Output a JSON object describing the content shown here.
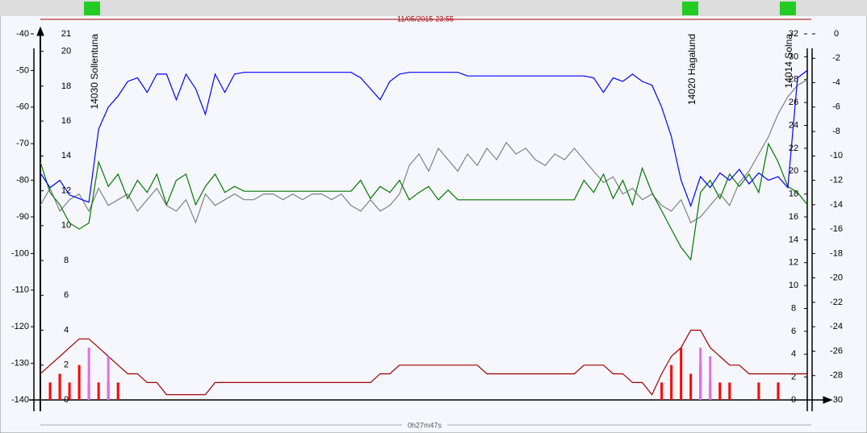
{
  "chart_data": {
    "type": "line",
    "start_time": "11/05/2015-23:55",
    "duration": "0h27m47s",
    "annotations": [
      "14030 Sollentuna",
      "14020 Hagalund",
      "14014 Solna"
    ],
    "ylim": [
      -140,
      -40
    ],
    "yticks": [
      -140,
      -130,
      -120,
      -110,
      -100,
      -90,
      -80,
      -70,
      -60,
      -50,
      -40
    ],
    "y2lim": [
      -30,
      0
    ],
    "y2ticks": [
      -30,
      -28,
      -26,
      -24,
      -22,
      -20,
      -18,
      -16,
      -14,
      -12,
      -10,
      -8,
      -6,
      -4,
      -2,
      0
    ],
    "y3lim": [
      0,
      21
    ],
    "y3ticks": [
      0,
      2,
      4,
      6,
      8,
      10,
      12,
      14,
      16,
      18,
      20,
      21
    ],
    "y4lim": [
      0,
      32
    ],
    "y4ticks": [
      0,
      2,
      4,
      6,
      8,
      10,
      12,
      14,
      16,
      18,
      20,
      22,
      24,
      26,
      28,
      30,
      32
    ],
    "grid": false,
    "series": [
      {
        "type": "step",
        "color": "#a00000",
        "axis": "y3",
        "values": [
          1.5,
          2,
          2.5,
          3,
          3.5,
          3.5,
          3,
          2.5,
          2,
          1.5,
          1.5,
          1,
          1,
          0.3,
          0.3,
          0.3,
          0.3,
          0.3,
          1,
          1,
          1,
          1,
          1,
          1,
          1,
          1,
          1,
          1,
          1,
          1,
          1,
          1,
          1,
          1,
          1,
          1.5,
          1.5,
          2,
          2,
          2,
          2,
          2,
          2,
          2,
          2,
          2,
          1.5,
          1.5,
          1.5,
          1.5,
          1.5,
          1.5,
          1.5,
          1.5,
          1.5,
          1.5,
          2,
          2,
          2,
          1.5,
          1.5,
          1,
          1,
          0.3,
          1.5,
          2.5,
          3,
          4,
          4,
          3,
          2.5,
          2,
          2,
          1.5,
          1.5,
          1.5,
          1.5,
          1.5,
          1.5,
          1.5
        ]
      },
      {
        "type": "bar",
        "color": "#ff0000",
        "axis": "y3",
        "values": [
          null,
          1,
          1.5,
          1,
          2,
          1,
          1,
          1,
          1,
          null,
          null,
          null,
          null,
          null,
          null,
          null,
          null,
          null,
          null,
          null,
          null,
          null,
          null,
          null,
          null,
          null,
          null,
          null,
          null,
          null,
          null,
          null,
          null,
          null,
          null,
          null,
          null,
          null,
          null,
          null,
          null,
          null,
          null,
          null,
          null,
          null,
          null,
          null,
          null,
          null,
          null,
          null,
          null,
          null,
          null,
          null,
          null,
          null,
          null,
          null,
          null,
          null,
          null,
          null,
          1,
          2,
          3,
          1.5,
          2,
          1,
          1,
          1,
          null,
          null,
          1,
          null,
          1,
          null,
          null,
          null
        ]
      },
      {
        "type": "bar",
        "color": "#e070e0",
        "axis": "y3",
        "values": [
          null,
          null,
          null,
          null,
          null,
          3,
          null,
          2.5,
          null,
          null,
          null,
          null,
          null,
          null,
          null,
          null,
          null,
          null,
          null,
          null,
          null,
          null,
          null,
          null,
          null,
          null,
          null,
          null,
          null,
          null,
          null,
          null,
          null,
          null,
          null,
          null,
          null,
          null,
          null,
          null,
          null,
          null,
          null,
          null,
          null,
          null,
          null,
          null,
          null,
          null,
          null,
          null,
          null,
          null,
          null,
          null,
          null,
          null,
          null,
          null,
          null,
          null,
          null,
          null,
          null,
          null,
          null,
          null,
          3,
          2.5,
          null,
          null,
          null,
          null,
          null,
          null,
          null,
          null,
          null,
          null
        ]
      },
      {
        "type": "line",
        "color": "#808080",
        "axis": "y4",
        "values": [
          17,
          18.5,
          16.5,
          17.5,
          18,
          16.5,
          18.5,
          17,
          17.5,
          18,
          16.5,
          17.5,
          18.5,
          17,
          16.5,
          17.5,
          15.5,
          18,
          17,
          17.5,
          18,
          17.5,
          17.5,
          18,
          18,
          17.5,
          18,
          17.5,
          18,
          18,
          17.5,
          18,
          17,
          16.5,
          17.5,
          16.5,
          17,
          18,
          20.5,
          21.5,
          20,
          22,
          21,
          20,
          21.5,
          20.5,
          22,
          21,
          22.5,
          21.5,
          22,
          21,
          20.5,
          21.5,
          21,
          22,
          21,
          20,
          19,
          19.5,
          18,
          18.5,
          17.5,
          18,
          17,
          16.5,
          17.5,
          15.5,
          16,
          17,
          18,
          17,
          19,
          20,
          21.5,
          23,
          25,
          26.5,
          27.5,
          28
        ]
      },
      {
        "type": "line",
        "color": "#007800",
        "axis": "y2",
        "values": [
          -10.5,
          -13,
          -14,
          -15.5,
          -16,
          -15.5,
          -10.5,
          -12.5,
          -11.5,
          -13.5,
          -12,
          -13,
          -11.5,
          -14,
          -12,
          -11.5,
          -14,
          -12.5,
          -11.5,
          -13,
          -12.5,
          -12.9,
          -12.9,
          -12.9,
          -12.9,
          -12.9,
          -12.9,
          -12.9,
          -12.9,
          -12.9,
          -12.9,
          -12.9,
          -12.9,
          -12,
          -13.5,
          -12.5,
          -13,
          -12,
          -13.6,
          -13,
          -12.5,
          -13.6,
          -12.8,
          -13.6,
          -13.6,
          -13.6,
          -13.6,
          -13.6,
          -13.6,
          -13.6,
          -13.6,
          -13.6,
          -13.6,
          -13.6,
          -13.6,
          -13.6,
          -12,
          -13,
          -11.5,
          -13.5,
          -12,
          -14,
          -11,
          -13,
          -14.5,
          -16,
          -17.5,
          -18.5,
          -13,
          -12,
          -13.5,
          -11.5,
          -12.5,
          -11.5,
          -13,
          -9,
          -10.5,
          -12.5,
          -13,
          -14
        ]
      },
      {
        "type": "line",
        "color": "#0000ff",
        "axis": "y",
        "values": [
          -78,
          -82,
          -80,
          -84,
          -85,
          -86,
          -66,
          -60,
          -57,
          -53,
          -52,
          -56,
          -51,
          -51,
          -58,
          -51,
          -55,
          -62,
          -51,
          -56,
          -51,
          -50.5,
          -50.5,
          -50.5,
          -50.5,
          -50.5,
          -50.5,
          -50.5,
          -50.5,
          -50.5,
          -50.5,
          -50.5,
          -50.5,
          -52,
          -55,
          -58,
          -53,
          -51,
          -50.5,
          -50.5,
          -50.5,
          -50.5,
          -50.5,
          -50.5,
          -51.5,
          -51.5,
          -51.5,
          -51.5,
          -51.5,
          -51.5,
          -51.5,
          -51.5,
          -51.5,
          -51.5,
          -51.5,
          -51.5,
          -51.5,
          -52,
          -56,
          -52,
          -53,
          -51,
          -53,
          -54,
          -60,
          -68,
          -80,
          -87,
          -79,
          -82,
          -78,
          -80,
          -77,
          -81,
          -78,
          -80,
          -79,
          -82,
          -52,
          -50
        ]
      }
    ]
  }
}
